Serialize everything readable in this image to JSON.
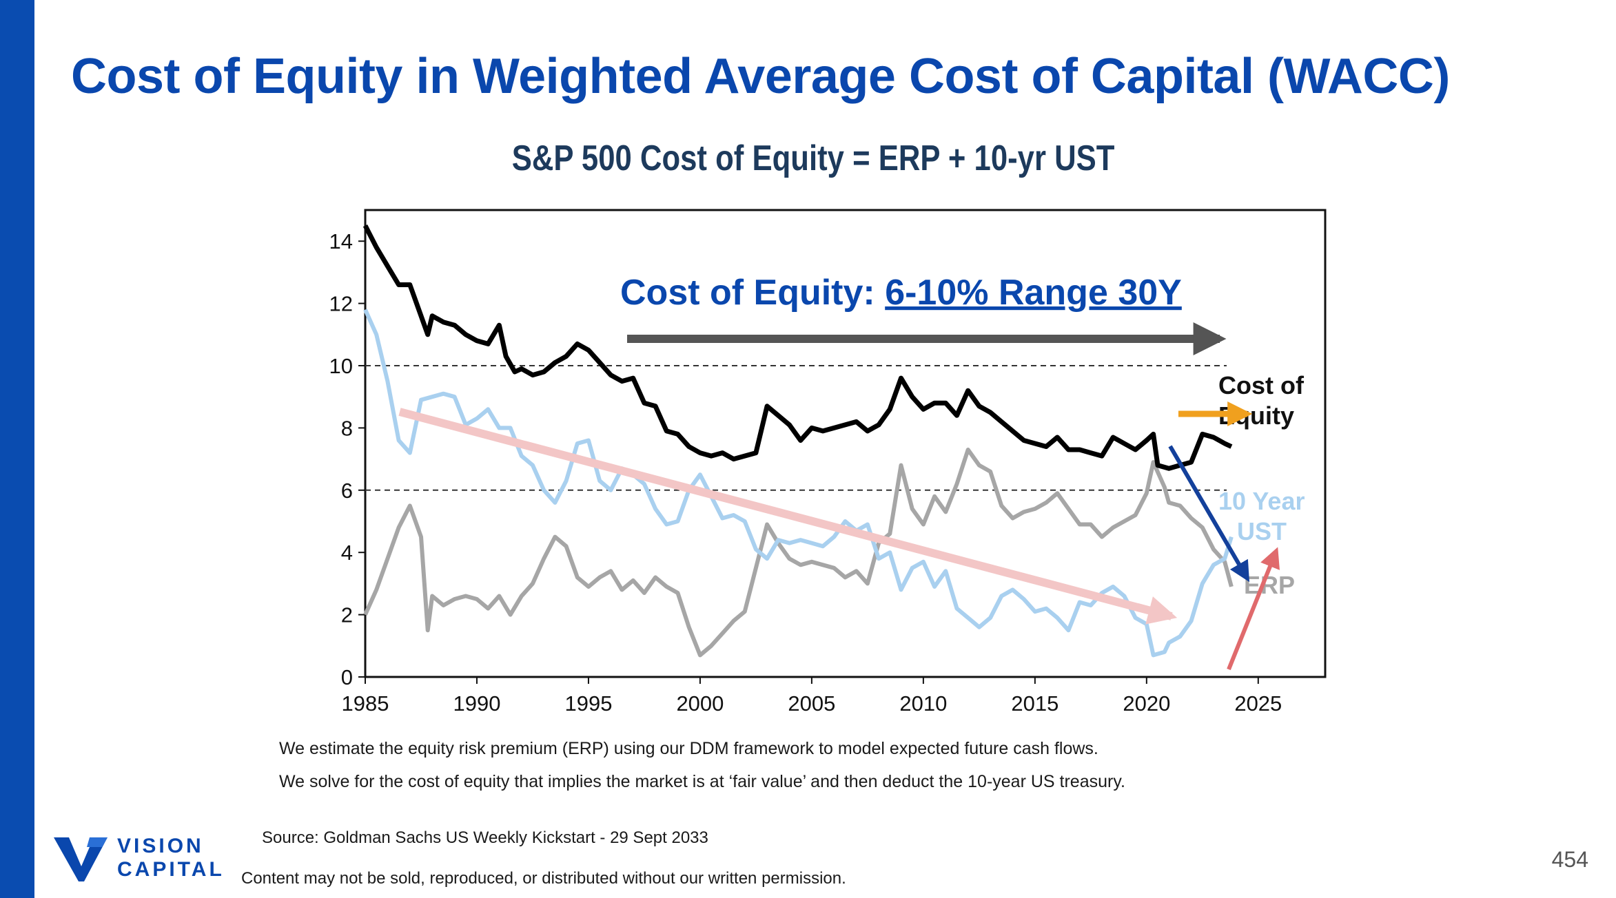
{
  "slide": {
    "title": "Cost of Equity in Weighted Average Cost of Capital (WACC)",
    "page_number": "454",
    "notes": [
      "We estimate the equity risk premium (ERP) using our DDM framework to model expected future cash flows.",
      "We solve for the cost of equity that implies the market is at ‘fair value’ and then deduct the 10-year US treasury."
    ],
    "source": "Source: Goldman Sachs US Weekly Kickstart - 29 Sept 2033",
    "disclaimer": "Content may not be sold, reproduced, or distributed without our written permission.",
    "logo": {
      "line1": "VISION",
      "line2": "CAPITAL"
    },
    "colors": {
      "sidebar": "#0a4cb0",
      "title": "#0a47ad"
    }
  },
  "chart_data": {
    "type": "line",
    "title": "S&P 500 Cost of Equity = ERP + 10-yr UST",
    "xlim": [
      1985,
      2028
    ],
    "ylim": [
      0,
      15
    ],
    "x_ticks": [
      "1985",
      "1990",
      "1995",
      "2000",
      "2005",
      "2010",
      "2015",
      "2020",
      "2025"
    ],
    "y_ticks": [
      "0",
      "2",
      "4",
      "6",
      "8",
      "10",
      "12",
      "14"
    ],
    "reference_lines": [
      10,
      6
    ],
    "series": [
      {
        "name": "Cost of Equity",
        "color": "#000000",
        "points": [
          [
            1985,
            14.5
          ],
          [
            1985.5,
            13.8
          ],
          [
            1986,
            13.2
          ],
          [
            1986.5,
            12.6
          ],
          [
            1987,
            12.6
          ],
          [
            1987.3,
            12.0
          ],
          [
            1987.8,
            11.0
          ],
          [
            1988,
            11.6
          ],
          [
            1988.5,
            11.4
          ],
          [
            1989,
            11.3
          ],
          [
            1989.5,
            11.0
          ],
          [
            1990,
            10.8
          ],
          [
            1990.5,
            10.7
          ],
          [
            1991,
            11.3
          ],
          [
            1991.3,
            10.3
          ],
          [
            1991.7,
            9.8
          ],
          [
            1992,
            9.9
          ],
          [
            1992.5,
            9.7
          ],
          [
            1993,
            9.8
          ],
          [
            1993.5,
            10.1
          ],
          [
            1994,
            10.3
          ],
          [
            1994.5,
            10.7
          ],
          [
            1995,
            10.5
          ],
          [
            1995.5,
            10.1
          ],
          [
            1996,
            9.7
          ],
          [
            1996.5,
            9.5
          ],
          [
            1997,
            9.6
          ],
          [
            1997.5,
            8.8
          ],
          [
            1998,
            8.7
          ],
          [
            1998.5,
            7.9
          ],
          [
            1999,
            7.8
          ],
          [
            1999.5,
            7.4
          ],
          [
            2000,
            7.2
          ],
          [
            2000.5,
            7.1
          ],
          [
            2001,
            7.2
          ],
          [
            2001.5,
            7.0
          ],
          [
            2002,
            7.1
          ],
          [
            2002.5,
            7.2
          ],
          [
            2003,
            8.7
          ],
          [
            2003.5,
            8.4
          ],
          [
            2004,
            8.1
          ],
          [
            2004.5,
            7.6
          ],
          [
            2005,
            8.0
          ],
          [
            2005.5,
            7.9
          ],
          [
            2006,
            8.0
          ],
          [
            2006.5,
            8.1
          ],
          [
            2007,
            8.2
          ],
          [
            2007.5,
            7.9
          ],
          [
            2008,
            8.1
          ],
          [
            2008.5,
            8.6
          ],
          [
            2009,
            9.6
          ],
          [
            2009.5,
            9.0
          ],
          [
            2010,
            8.6
          ],
          [
            2010.5,
            8.8
          ],
          [
            2011,
            8.8
          ],
          [
            2011.5,
            8.4
          ],
          [
            2012,
            9.2
          ],
          [
            2012.5,
            8.7
          ],
          [
            2013,
            8.5
          ],
          [
            2013.5,
            8.2
          ],
          [
            2014,
            7.9
          ],
          [
            2014.5,
            7.6
          ],
          [
            2015,
            7.5
          ],
          [
            2015.5,
            7.4
          ],
          [
            2016,
            7.7
          ],
          [
            2016.5,
            7.3
          ],
          [
            2017,
            7.3
          ],
          [
            2017.5,
            7.2
          ],
          [
            2018,
            7.1
          ],
          [
            2018.5,
            7.7
          ],
          [
            2019,
            7.5
          ],
          [
            2019.5,
            7.3
          ],
          [
            2020,
            7.6
          ],
          [
            2020.3,
            7.8
          ],
          [
            2020.5,
            6.8
          ],
          [
            2021,
            6.7
          ],
          [
            2021.5,
            6.8
          ],
          [
            2022,
            6.9
          ],
          [
            2022.5,
            7.8
          ],
          [
            2023,
            7.7
          ],
          [
            2023.5,
            7.5
          ],
          [
            2023.8,
            7.4
          ]
        ]
      },
      {
        "name": "10 Year UST",
        "color": "#a9d0ef",
        "points": [
          [
            1985,
            11.8
          ],
          [
            1985.5,
            11.0
          ],
          [
            1986,
            9.5
          ],
          [
            1986.5,
            7.6
          ],
          [
            1987,
            7.2
          ],
          [
            1987.5,
            8.9
          ],
          [
            1988,
            9.0
          ],
          [
            1988.5,
            9.1
          ],
          [
            1989,
            9.0
          ],
          [
            1989.5,
            8.1
          ],
          [
            1990,
            8.3
          ],
          [
            1990.5,
            8.6
          ],
          [
            1991,
            8.0
          ],
          [
            1991.5,
            8.0
          ],
          [
            1992,
            7.1
          ],
          [
            1992.5,
            6.8
          ],
          [
            1993,
            6.0
          ],
          [
            1993.5,
            5.6
          ],
          [
            1994,
            6.3
          ],
          [
            1994.5,
            7.5
          ],
          [
            1995,
            7.6
          ],
          [
            1995.5,
            6.3
          ],
          [
            1996,
            6.0
          ],
          [
            1996.5,
            6.7
          ],
          [
            1997,
            6.5
          ],
          [
            1997.5,
            6.2
          ],
          [
            1998,
            5.4
          ],
          [
            1998.5,
            4.9
          ],
          [
            1999,
            5.0
          ],
          [
            1999.5,
            6.0
          ],
          [
            2000,
            6.5
          ],
          [
            2000.5,
            5.8
          ],
          [
            2001,
            5.1
          ],
          [
            2001.5,
            5.2
          ],
          [
            2002,
            5.0
          ],
          [
            2002.5,
            4.1
          ],
          [
            2003,
            3.8
          ],
          [
            2003.5,
            4.4
          ],
          [
            2004,
            4.3
          ],
          [
            2004.5,
            4.4
          ],
          [
            2005,
            4.3
          ],
          [
            2005.5,
            4.2
          ],
          [
            2006,
            4.5
          ],
          [
            2006.5,
            5.0
          ],
          [
            2007,
            4.7
          ],
          [
            2007.5,
            4.9
          ],
          [
            2008,
            3.8
          ],
          [
            2008.5,
            4.0
          ],
          [
            2009,
            2.8
          ],
          [
            2009.5,
            3.5
          ],
          [
            2010,
            3.7
          ],
          [
            2010.5,
            2.9
          ],
          [
            2011,
            3.4
          ],
          [
            2011.5,
            2.2
          ],
          [
            2012,
            1.9
          ],
          [
            2012.5,
            1.6
          ],
          [
            2013,
            1.9
          ],
          [
            2013.5,
            2.6
          ],
          [
            2014,
            2.8
          ],
          [
            2014.5,
            2.5
          ],
          [
            2015,
            2.1
          ],
          [
            2015.5,
            2.2
          ],
          [
            2016,
            1.9
          ],
          [
            2016.5,
            1.5
          ],
          [
            2017,
            2.4
          ],
          [
            2017.5,
            2.3
          ],
          [
            2018,
            2.7
          ],
          [
            2018.5,
            2.9
          ],
          [
            2019,
            2.6
          ],
          [
            2019.5,
            1.9
          ],
          [
            2020,
            1.7
          ],
          [
            2020.3,
            0.7
          ],
          [
            2020.8,
            0.8
          ],
          [
            2021,
            1.1
          ],
          [
            2021.5,
            1.3
          ],
          [
            2022,
            1.8
          ],
          [
            2022.5,
            3.0
          ],
          [
            2023,
            3.6
          ],
          [
            2023.5,
            3.8
          ],
          [
            2023.8,
            4.5
          ]
        ]
      },
      {
        "name": "ERP",
        "color": "#a6a6a6",
        "points": [
          [
            1985,
            2.0
          ],
          [
            1985.5,
            2.8
          ],
          [
            1986,
            3.8
          ],
          [
            1986.5,
            4.8
          ],
          [
            1987,
            5.5
          ],
          [
            1987.5,
            4.5
          ],
          [
            1987.8,
            1.5
          ],
          [
            1988,
            2.6
          ],
          [
            1988.5,
            2.3
          ],
          [
            1989,
            2.5
          ],
          [
            1989.5,
            2.6
          ],
          [
            1990,
            2.5
          ],
          [
            1990.5,
            2.2
          ],
          [
            1991,
            2.6
          ],
          [
            1991.5,
            2.0
          ],
          [
            1992,
            2.6
          ],
          [
            1992.5,
            3.0
          ],
          [
            1993,
            3.8
          ],
          [
            1993.5,
            4.5
          ],
          [
            1994,
            4.2
          ],
          [
            1994.5,
            3.2
          ],
          [
            1995,
            2.9
          ],
          [
            1995.5,
            3.2
          ],
          [
            1996,
            3.4
          ],
          [
            1996.5,
            2.8
          ],
          [
            1997,
            3.1
          ],
          [
            1997.5,
            2.7
          ],
          [
            1998,
            3.2
          ],
          [
            1998.5,
            2.9
          ],
          [
            1999,
            2.7
          ],
          [
            1999.5,
            1.6
          ],
          [
            2000,
            0.7
          ],
          [
            2000.5,
            1.0
          ],
          [
            2001,
            1.4
          ],
          [
            2001.5,
            1.8
          ],
          [
            2002,
            2.1
          ],
          [
            2002.5,
            3.5
          ],
          [
            2003,
            4.9
          ],
          [
            2003.5,
            4.3
          ],
          [
            2004,
            3.8
          ],
          [
            2004.5,
            3.6
          ],
          [
            2005,
            3.7
          ],
          [
            2005.5,
            3.6
          ],
          [
            2006,
            3.5
          ],
          [
            2006.5,
            3.2
          ],
          [
            2007,
            3.4
          ],
          [
            2007.5,
            3.0
          ],
          [
            2008,
            4.3
          ],
          [
            2008.5,
            4.6
          ],
          [
            2009,
            6.8
          ],
          [
            2009.5,
            5.4
          ],
          [
            2010,
            4.9
          ],
          [
            2010.5,
            5.8
          ],
          [
            2011,
            5.3
          ],
          [
            2011.5,
            6.2
          ],
          [
            2012,
            7.3
          ],
          [
            2012.5,
            6.8
          ],
          [
            2013,
            6.6
          ],
          [
            2013.5,
            5.5
          ],
          [
            2014,
            5.1
          ],
          [
            2014.5,
            5.3
          ],
          [
            2015,
            5.4
          ],
          [
            2015.5,
            5.6
          ],
          [
            2016,
            5.9
          ],
          [
            2016.5,
            5.4
          ],
          [
            2017,
            4.9
          ],
          [
            2017.5,
            4.9
          ],
          [
            2018,
            4.5
          ],
          [
            2018.5,
            4.8
          ],
          [
            2019,
            5.0
          ],
          [
            2019.5,
            5.2
          ],
          [
            2020,
            5.9
          ],
          [
            2020.3,
            6.9
          ],
          [
            2020.8,
            6.1
          ],
          [
            2021,
            5.6
          ],
          [
            2021.5,
            5.5
          ],
          [
            2022,
            5.1
          ],
          [
            2022.5,
            4.8
          ],
          [
            2023,
            4.1
          ],
          [
            2023.5,
            3.7
          ],
          [
            2023.8,
            2.9
          ]
        ]
      }
    ],
    "annotations": {
      "range_prefix": "Cost of Equity: ",
      "range_label": "6-10% Range 30Y",
      "label_coe_1": "Cost of",
      "label_coe_2": "Equity",
      "label_ust_1": "10 Year",
      "label_ust_2": "UST",
      "label_erp": "ERP",
      "arrow_colors": {
        "range": "#555555",
        "coe": "#f0a01e",
        "ust_trend": "#f3c6c6",
        "erp_down": "#13409b",
        "ust_up": "#e06a6c"
      }
    }
  }
}
